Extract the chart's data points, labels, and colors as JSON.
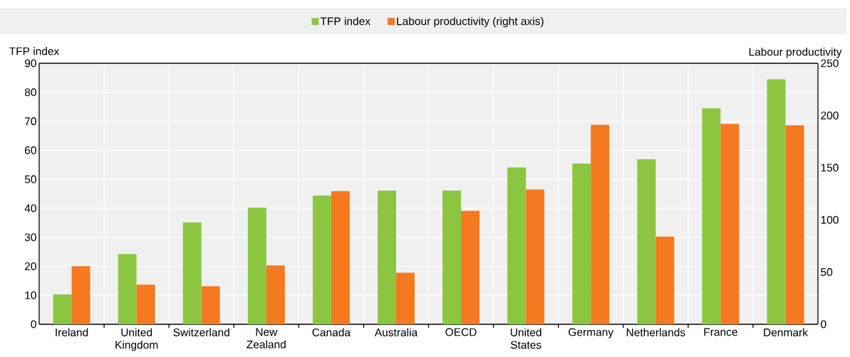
{
  "chart_data": {
    "type": "bar",
    "ylabel": "TFP index",
    "y2label": "Labour productivity",
    "categories": [
      "Ireland",
      "United Kingdom",
      "Switzerland",
      "New Zealand",
      "Canada",
      "Australia",
      "OECD",
      "United States",
      "Germany",
      "Netherlands",
      "France",
      "Denmark"
    ],
    "series": [
      {
        "name": "TFP index",
        "color": "#8cc641",
        "values": [
          10.3,
          24.2,
          35.1,
          40.2,
          44.4,
          46.1,
          46.1,
          54.1,
          55.4,
          56.9,
          74.5,
          84.5
        ]
      },
      {
        "name": "Labour productivity (right axis)",
        "color": "#f47920",
        "axis": "y2",
        "values": [
          55.6,
          38,
          36.4,
          56.4,
          127.5,
          49.4,
          108.6,
          129,
          191,
          84,
          192,
          190.5
        ]
      }
    ],
    "ylim": [
      0,
      90
    ],
    "yticks": [
      0,
      10,
      20,
      30,
      40,
      50,
      60,
      70,
      80,
      90
    ],
    "y2lim": [
      0,
      250
    ],
    "y2ticks": [
      0,
      50,
      100,
      150,
      200,
      250
    ],
    "grid": true,
    "legend": "top"
  }
}
